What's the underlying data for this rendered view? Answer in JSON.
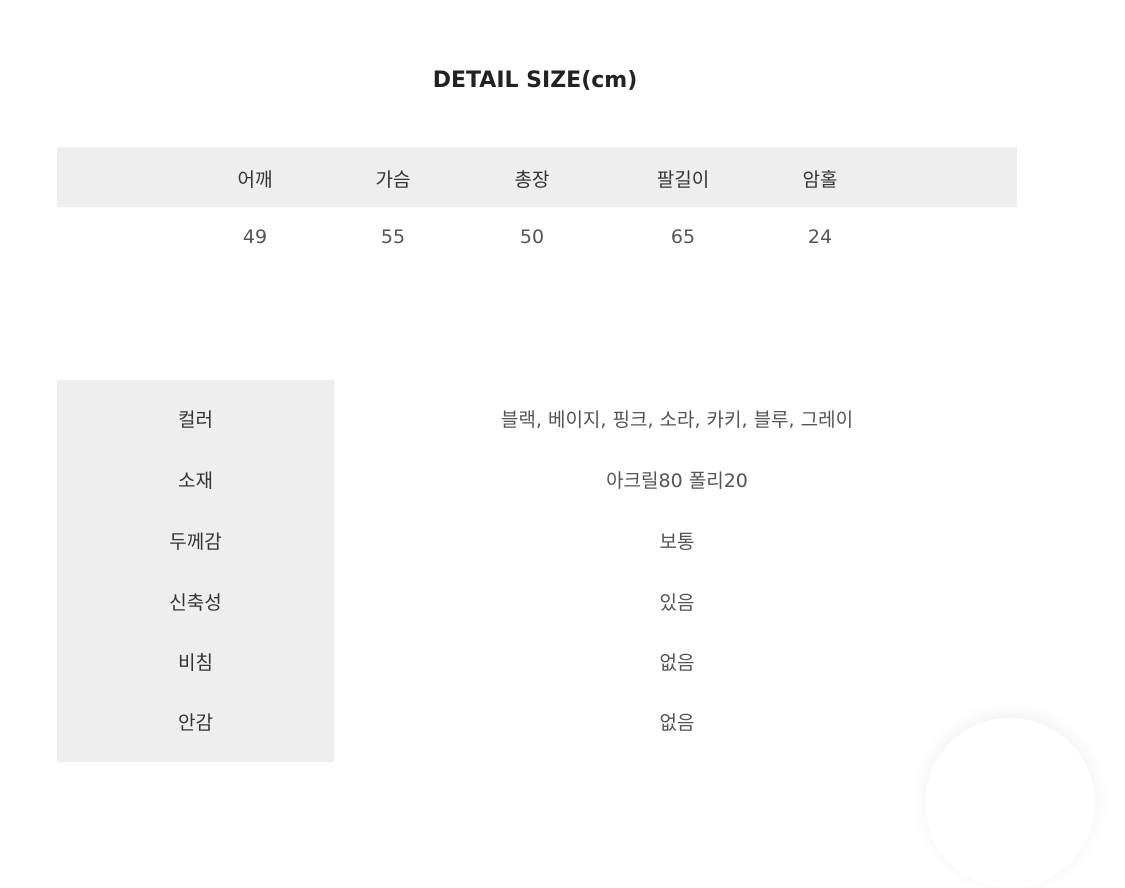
{
  "title": "DETAIL SIZE(cm)",
  "size_table": {
    "headers": [
      "어깨",
      "가슴",
      "총장",
      "팔길이",
      "암홀"
    ],
    "values": [
      "49",
      "55",
      "50",
      "65",
      "24"
    ]
  },
  "info_table": [
    {
      "label": "컬러",
      "value": "블랙, 베이지, 핑크, 소라, 카키, 블루, 그레이"
    },
    {
      "label": "소재",
      "value": "아크릴80 폴리20"
    },
    {
      "label": "두께감",
      "value": "보통"
    },
    {
      "label": "신축성",
      "value": "있음"
    },
    {
      "label": "비침",
      "value": "없음"
    },
    {
      "label": "안감",
      "value": "없음"
    }
  ]
}
